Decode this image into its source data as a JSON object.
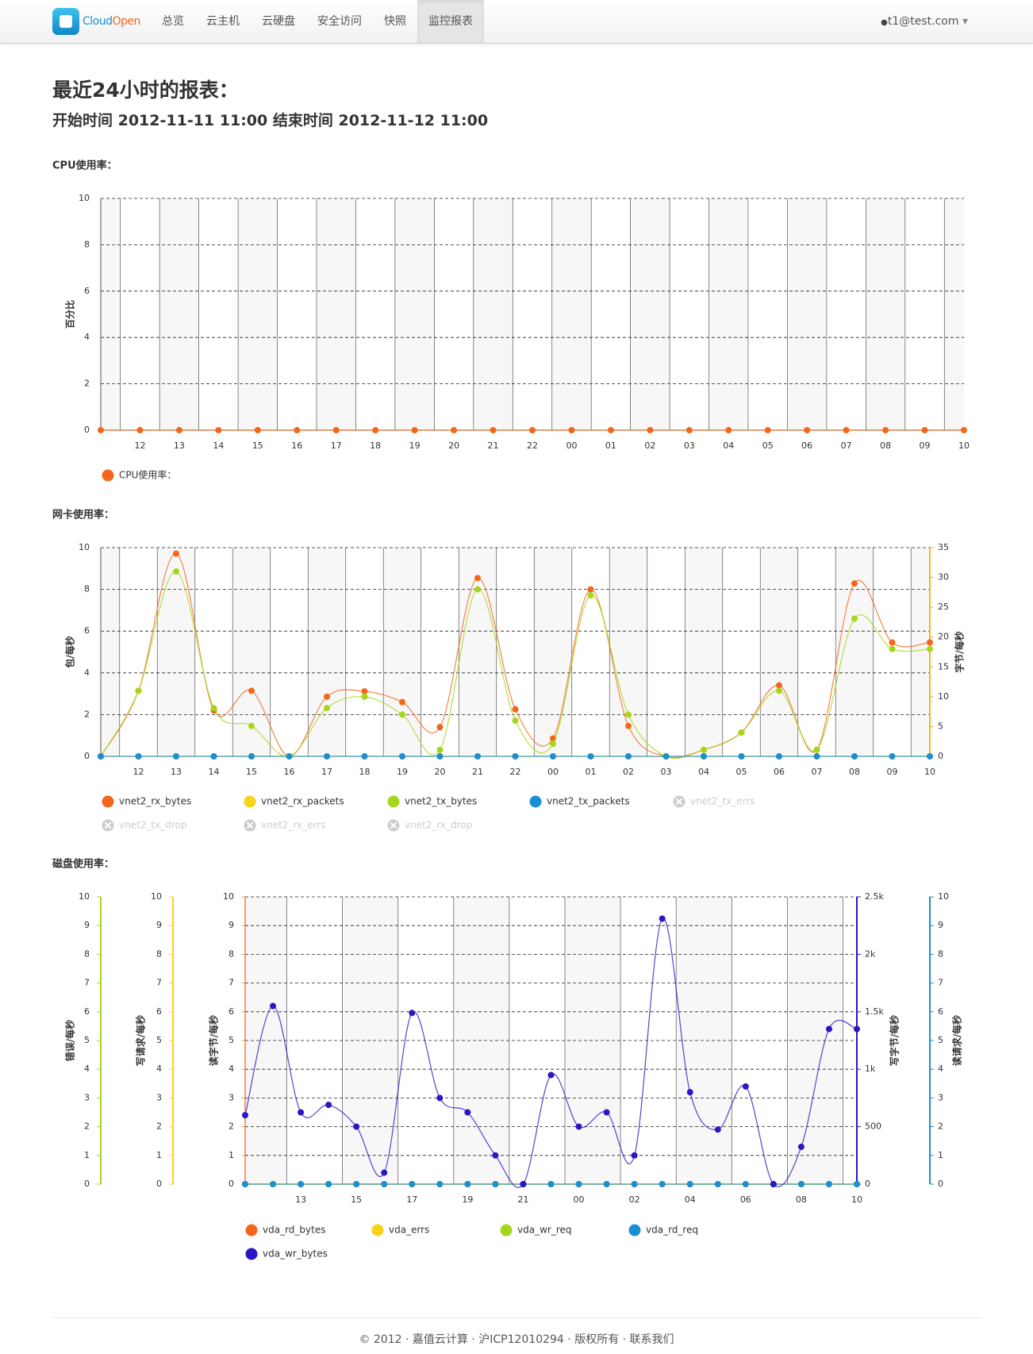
{
  "navbar": {
    "brand": [
      "Cloud",
      "Open"
    ],
    "items": [
      "总览",
      "云主机",
      "云硬盘",
      "安全访问",
      "快照",
      "监控报表"
    ],
    "active": 5,
    "user": "t1@test.com"
  },
  "header": {
    "title": "最近24小时的报表：",
    "subtitle": "开始时间 2012-11-11 11:00 结束时间 2012-11-12 11:00"
  },
  "chart_data": [
    {
      "type": "line",
      "smooth": true,
      "title": "CPU使用率：",
      "ylabel": "百分比",
      "categories": [
        null,
        "12",
        "13",
        "14",
        "15",
        "16",
        "17",
        "18",
        "19",
        "20",
        "21",
        "22",
        "00",
        "01",
        "02",
        "03",
        "04",
        "05",
        "06",
        "07",
        "08",
        "09",
        "10"
      ],
      "ylim": [
        0,
        10
      ],
      "yticks": [
        0,
        2,
        4,
        6,
        8,
        10
      ],
      "grid": true,
      "series": [
        {
          "name": "CPU使用率：",
          "color": "#f4661b",
          "values": [
            0,
            0,
            0,
            0,
            0,
            0,
            0,
            0,
            0,
            0,
            0,
            0,
            0,
            0,
            0,
            0,
            0,
            0,
            0,
            0,
            0,
            0,
            0
          ]
        }
      ]
    },
    {
      "type": "line",
      "smooth": true,
      "title": "网卡使用率：",
      "ylabel": "包/每秒",
      "y2label": "字节/每秒",
      "categories": [
        null,
        "12",
        "13",
        "14",
        "15",
        "16",
        "17",
        "18",
        "19",
        "20",
        "21",
        "22",
        "00",
        "01",
        "02",
        "03",
        "04",
        "05",
        "06",
        "07",
        "08",
        "09",
        "10"
      ],
      "ylim": [
        0,
        10
      ],
      "yticks": [
        0,
        2,
        4,
        6,
        8,
        10
      ],
      "y2lim": [
        0,
        35
      ],
      "y2ticks": [
        0,
        5,
        10,
        15,
        20,
        25,
        30,
        35
      ],
      "y2color": "#f6b51b",
      "grid": true,
      "series": [
        {
          "name": "vnet2_rx_bytes",
          "color": "#f4661b",
          "axis": "y2",
          "values": [
            0,
            11,
            34,
            7.7,
            11,
            0,
            10,
            10.9,
            9.1,
            4.9,
            29.9,
            7.9,
            3,
            28,
            5.1,
            0,
            1.1,
            4,
            11.9,
            1.1,
            29,
            19.1,
            19.1
          ]
        },
        {
          "name": "vnet2_rx_packets",
          "color": "#f9d21b",
          "axis": "y",
          "values": [
            0,
            0,
            0,
            0,
            0,
            0,
            0,
            0,
            0,
            0,
            0,
            0,
            0,
            0,
            0,
            0,
            0,
            0,
            0,
            0,
            0,
            0,
            0
          ]
        },
        {
          "name": "vnet2_tx_bytes",
          "color": "#a6d61c",
          "axis": "y2",
          "values": [
            0,
            11,
            31,
            8.1,
            5.1,
            0,
            8.1,
            10,
            7,
            1.1,
            28,
            6,
            2.1,
            27,
            7,
            0,
            1.1,
            4,
            11,
            1.1,
            23.1,
            18,
            18
          ]
        },
        {
          "name": "vnet2_tx_packets",
          "color": "#1b8fd3",
          "axis": "y",
          "values": [
            0,
            0,
            0,
            0,
            0,
            0,
            0,
            0,
            0,
            0,
            0,
            0,
            0,
            0,
            0,
            0,
            0,
            0,
            0,
            0,
            0,
            0,
            0
          ]
        },
        {
          "name": "vnet2_tx_errs",
          "visible": false
        },
        {
          "name": "vnet2_tx_drop",
          "visible": false
        },
        {
          "name": "vnet2_rx_errs",
          "visible": false
        },
        {
          "name": "vnet2_rx_drop",
          "visible": false
        }
      ]
    },
    {
      "type": "line",
      "smooth": true,
      "title": "磁盘使用率：",
      "categories": [
        null,
        null,
        "13",
        null,
        "15",
        null,
        "17",
        null,
        "19",
        null,
        "21",
        null,
        "00",
        null,
        "02",
        null,
        "04",
        null,
        "06",
        null,
        "08",
        null,
        "10"
      ],
      "axes": [
        {
          "label": "错误/每秒",
          "lim": [
            0,
            10
          ],
          "ticks": [
            0,
            1,
            2,
            3,
            4,
            5,
            6,
            7,
            8,
            9,
            10
          ],
          "color": "#a6d61c"
        },
        {
          "label": "写请求/每秒",
          "lim": [
            0,
            10
          ],
          "ticks": [
            0,
            1,
            2,
            3,
            4,
            5,
            6,
            7,
            8,
            9,
            10
          ],
          "color": "#f9d21b"
        },
        {
          "label": "读字节/每秒",
          "lim": [
            0,
            10
          ],
          "ticks": [
            0,
            1,
            2,
            3,
            4,
            5,
            6,
            7,
            8,
            9,
            10
          ],
          "color": "#f4a06a",
          "grid": true
        },
        {
          "label": "写字节/每秒",
          "lim": [
            0,
            2500
          ],
          "ticks": [
            0,
            500,
            {
              "value": 1000,
              "label": "1k"
            },
            {
              "value": 1500,
              "label": "1.5k"
            },
            {
              "value": 2000,
              "label": "2k"
            },
            {
              "value": 2500,
              "label": "2.5k"
            }
          ],
          "color": "#2b16c4"
        },
        {
          "label": "读请求/每秒",
          "lim": [
            0,
            10
          ],
          "ticks": [
            0,
            1,
            2,
            3,
            4,
            5,
            6,
            7,
            8,
            9,
            10
          ],
          "color": "#1b8fd3"
        }
      ],
      "series": [
        {
          "name": "vda_rd_bytes",
          "color": "#f4661b",
          "axis": 2,
          "values": [
            0,
            0,
            0,
            0,
            0,
            0,
            0,
            0,
            0,
            0,
            0,
            0,
            0,
            0,
            0,
            0,
            0,
            0,
            0,
            0,
            0,
            0,
            0
          ]
        },
        {
          "name": "vda_errs",
          "color": "#f9d21b",
          "axis": 1,
          "values": [
            0,
            0,
            0,
            0,
            0,
            0,
            0,
            0,
            0,
            0,
            0,
            0,
            0,
            0,
            0,
            0,
            0,
            0,
            0,
            0,
            0,
            0,
            0
          ]
        },
        {
          "name": "vda_wr_req",
          "color": "#a6d61c",
          "axis": 0,
          "values": [
            0,
            0,
            0,
            0,
            0,
            0,
            0,
            0,
            0,
            0,
            0,
            0,
            0,
            0,
            0,
            0,
            0,
            0,
            0,
            0,
            0,
            0,
            0
          ]
        },
        {
          "name": "vda_rd_req",
          "color": "#1b8fd3",
          "axis": 4,
          "values": [
            0,
            0,
            0,
            0,
            0,
            0,
            0,
            0,
            0,
            0,
            0,
            0,
            0,
            0,
            0,
            0,
            0,
            0,
            0,
            0,
            0,
            0,
            0
          ]
        },
        {
          "name": "vda_wr_bytes",
          "color": "#2b16c4",
          "axis": 3,
          "values": [
            600,
            1550,
            625,
            690,
            500,
            100,
            1490,
            750,
            625,
            250,
            0,
            950,
            500,
            625,
            250,
            2310,
            800,
            475,
            850,
            0,
            325,
            1350,
            1350
          ]
        }
      ]
    }
  ],
  "footer": "© 2012 · 嘉值云计算 · 沪ICP12010294 · 版权所有 · 联系我们"
}
